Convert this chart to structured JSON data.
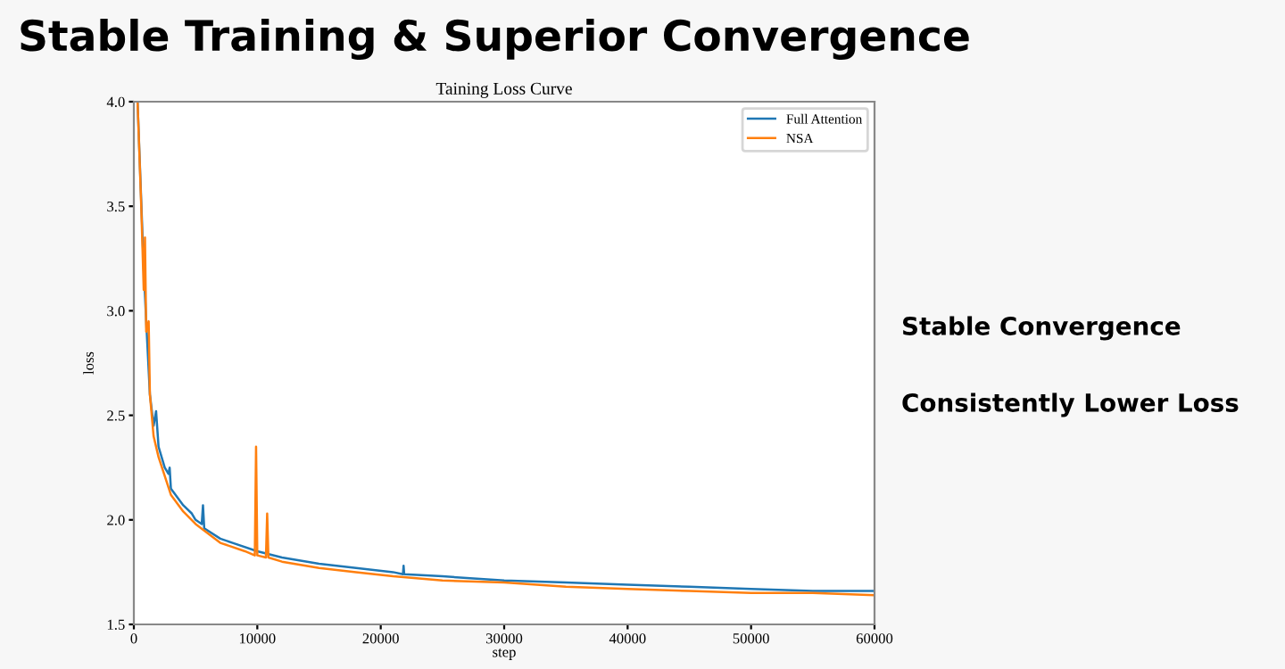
{
  "chart_data": {
    "type": "line",
    "title": "Stable Training & Superior Convergence",
    "subtitle": "Taining Loss Curve",
    "xlabel": "step",
    "ylabel": "loss",
    "annotations": [
      "Stable Convergence",
      "Consistently Lower Loss"
    ],
    "series": [
      {
        "name": "Full Attention",
        "color": "#1f77b4",
        "x": [
          300,
          800,
          1000,
          1300,
          1600,
          1800,
          2000,
          2500,
          2800,
          2900,
          3000,
          4000,
          4700,
          5000,
          5500,
          5600,
          5700,
          7000,
          8000,
          10000,
          12000,
          15000,
          18000,
          21000,
          21800,
          21850,
          21900,
          25000,
          30000,
          35000,
          40000,
          45000,
          50000,
          55000,
          60000
        ],
        "values": [
          4.0,
          3.2,
          2.95,
          2.6,
          2.45,
          2.52,
          2.35,
          2.25,
          2.22,
          2.25,
          2.15,
          2.07,
          2.03,
          2.0,
          1.98,
          2.07,
          1.96,
          1.91,
          1.89,
          1.85,
          1.82,
          1.79,
          1.77,
          1.75,
          1.74,
          1.78,
          1.74,
          1.73,
          1.71,
          1.7,
          1.69,
          1.68,
          1.67,
          1.66,
          1.66
        ]
      },
      {
        "name": "NSA",
        "color": "#ff7f0e",
        "x": [
          300,
          600,
          800,
          900,
          1000,
          1200,
          1300,
          1600,
          2000,
          3000,
          4000,
          5000,
          7000,
          9000,
          9800,
          9900,
          10000,
          10700,
          10800,
          10900,
          12000,
          15000,
          18000,
          21000,
          25000,
          30000,
          35000,
          40000,
          45000,
          50000,
          55000,
          60000
        ],
        "values": [
          4.0,
          3.5,
          3.1,
          3.35,
          2.9,
          2.95,
          2.6,
          2.4,
          2.3,
          2.12,
          2.04,
          1.98,
          1.89,
          1.85,
          1.83,
          2.35,
          1.83,
          1.82,
          2.03,
          1.82,
          1.8,
          1.77,
          1.75,
          1.73,
          1.71,
          1.7,
          1.68,
          1.67,
          1.66,
          1.65,
          1.65,
          1.64
        ]
      }
    ],
    "xlim": [
      0,
      60000
    ],
    "ylim": [
      1.5,
      4.0
    ],
    "xticks": [
      0,
      10000,
      20000,
      30000,
      40000,
      50000,
      60000
    ],
    "yticks": [
      1.5,
      {
        "value": 2,
        "label": "2.0"
      },
      2.5,
      {
        "value": 3,
        "label": "3.0"
      },
      3.5,
      {
        "value": 4,
        "label": "4.0"
      }
    ],
    "grid": false,
    "legend": "top right",
    "line_style": "solid",
    "marker": "none"
  }
}
